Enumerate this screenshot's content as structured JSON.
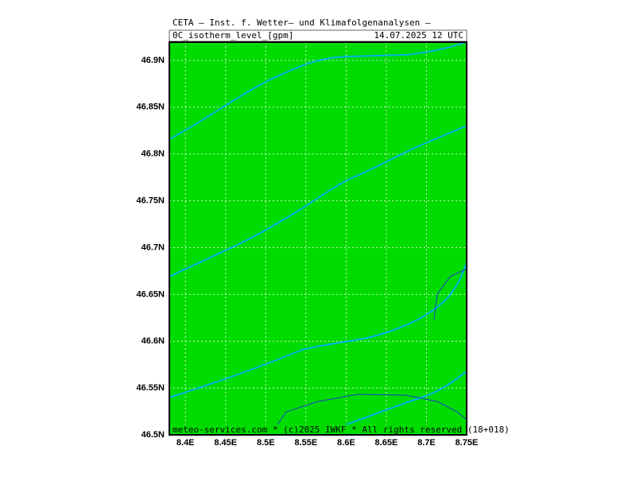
{
  "header": {
    "title": "CETA — Inst. f. Wetter— und Klimafolgenanalysen —",
    "parameter": "0C_isotherm_level_[gpm]",
    "valid_time": "14.07.2025 12 UTC"
  },
  "footer": "meteo-services.com * (c)2025 IWKF * All rights reserved (18+018)",
  "map": {
    "xlim": [
      8.38,
      8.75
    ],
    "ylim": [
      46.5,
      46.9195
    ],
    "xticks": [
      {
        "value": 8.4,
        "label": "8.4E"
      },
      {
        "value": 8.45,
        "label": "8.45E"
      },
      {
        "value": 8.5,
        "label": "8.5E"
      },
      {
        "value": 8.55,
        "label": "8.55E"
      },
      {
        "value": 8.6,
        "label": "8.6E"
      },
      {
        "value": 8.65,
        "label": "8.65E"
      },
      {
        "value": 8.7,
        "label": "8.7E"
      },
      {
        "value": 8.75,
        "label": "8.75E"
      }
    ],
    "yticks": [
      {
        "value": 46.5,
        "label": "46.5N"
      },
      {
        "value": 46.55,
        "label": "46.55N"
      },
      {
        "value": 46.6,
        "label": "46.6N"
      },
      {
        "value": 46.65,
        "label": "46.65N"
      },
      {
        "value": 46.7,
        "label": "46.7N"
      },
      {
        "value": 46.75,
        "label": "46.75N"
      },
      {
        "value": 46.8,
        "label": "46.8N"
      },
      {
        "value": 46.85,
        "label": "46.85N"
      },
      {
        "value": 46.9,
        "label": "46.9N"
      }
    ]
  }
}
